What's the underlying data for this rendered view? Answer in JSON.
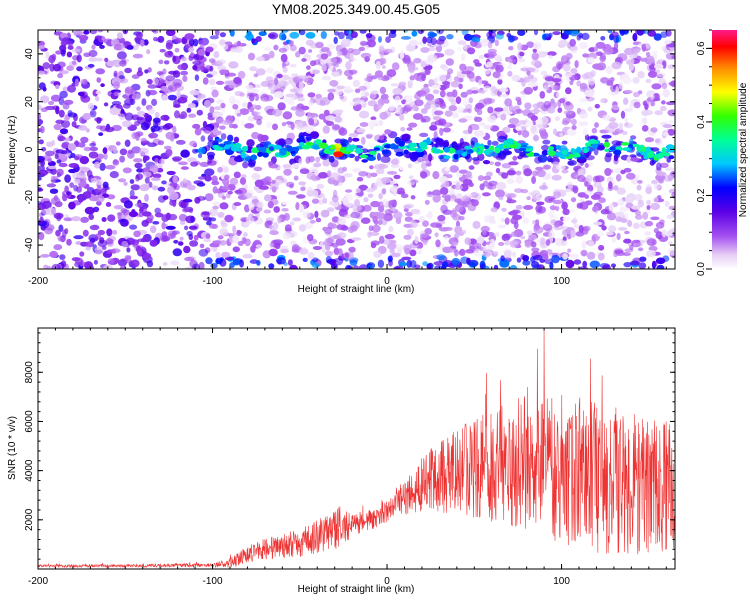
{
  "title": "YM08.2025.349.00.45.G05",
  "chart_data": [
    {
      "type": "heatmap",
      "xlabel": "Height of straight line (km)",
      "ylabel": "Frequency (Hz)",
      "xlim": [
        -200,
        165
      ],
      "ylim": [
        -50,
        50
      ],
      "xticks": [
        -200,
        -100,
        0,
        100
      ],
      "yticks": [
        -40,
        -20,
        0,
        20,
        40
      ],
      "colorbar": {
        "label": "Normalized spectral amplitude",
        "range": [
          0.0,
          0.65
        ],
        "ticks": [
          0.0,
          0.2,
          0.4,
          0.6
        ],
        "tick_labels": [
          "0.0",
          "0.2",
          "0.4",
          "0.6"
        ]
      },
      "features": {
        "signal_line_frequency_hz": 0,
        "signal_onset_height_km": -100,
        "peak_amplitude": 0.6,
        "peak_height_km": -28,
        "edge_bands_frequency_hz": [
          48,
          -48
        ]
      }
    },
    {
      "type": "line",
      "xlabel": "Height of straight line (km)",
      "ylabel": "SNR (10 * v/v)",
      "xlim": [
        -200,
        165
      ],
      "ylim": [
        0,
        9800
      ],
      "xticks": [
        -200,
        -100,
        0,
        100
      ],
      "yticks": [
        2000,
        4000,
        6000,
        8000
      ],
      "line_color": "#ee3333",
      "envelope": {
        "x": [
          -200,
          -150,
          -100,
          -90,
          -80,
          -70,
          -60,
          -50,
          -40,
          -30,
          -25,
          -20,
          -15,
          -10,
          -5,
          0,
          5,
          10,
          15,
          20,
          30,
          40,
          50,
          60,
          70,
          80,
          90,
          100,
          110,
          120,
          130,
          140,
          150,
          160,
          165
        ],
        "mean": [
          120,
          130,
          160,
          250,
          600,
          800,
          950,
          1100,
          1300,
          1600,
          1750,
          1700,
          1900,
          2000,
          2100,
          2400,
          2700,
          2900,
          3100,
          3400,
          3800,
          4000,
          4100,
          4200,
          4200,
          4300,
          4200,
          4000,
          3800,
          3700,
          3600,
          3500,
          3400,
          3400,
          3300
        ],
        "spread": [
          60,
          60,
          80,
          200,
          350,
          450,
          500,
          600,
          700,
          800,
          900,
          500,
          450,
          400,
          450,
          500,
          600,
          700,
          900,
          1200,
          1500,
          1800,
          2000,
          2300,
          2600,
          2800,
          2900,
          3000,
          3000,
          3100,
          3000,
          2900,
          2800,
          2700,
          2600
        ]
      }
    }
  ]
}
